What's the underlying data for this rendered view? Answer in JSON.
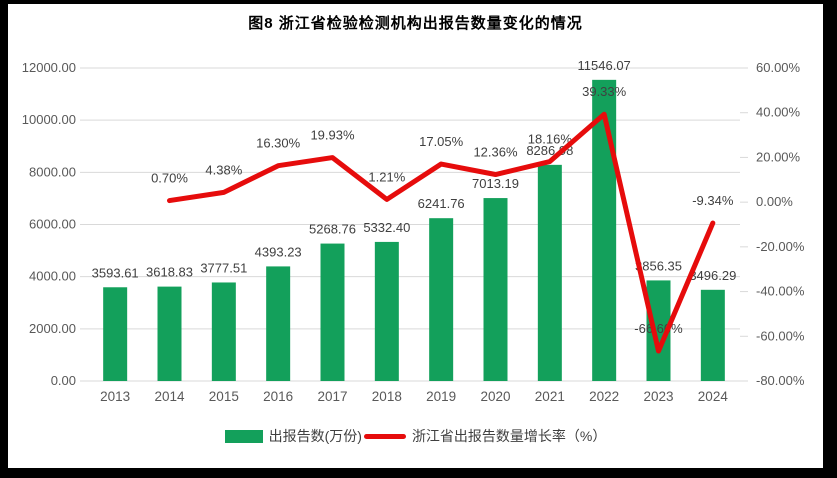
{
  "chart": {
    "title": "图8 浙江省检验检测机构出报告数量变化的情况",
    "colors": {
      "bar": "#13A05B",
      "line": "#E60C0C",
      "grid": "#D9D9D9",
      "axis_text": "#595959",
      "data_label": "#404040",
      "title_text": "#000000",
      "frame_border": "#000000",
      "background": "#FFFFFF"
    }
  },
  "chart_data": {
    "type": "bar+line combo",
    "title": "图8 浙江省检验检测机构出报告数量变化的情况",
    "categories": [
      "2013",
      "2014",
      "2015",
      "2016",
      "2017",
      "2018",
      "2019",
      "2020",
      "2021",
      "2022",
      "2023",
      "2024"
    ],
    "series": [
      {
        "name": "出报告数(万份)",
        "type": "bar",
        "axis": "left",
        "color": "#13A05B",
        "values": [
          3593.61,
          3618.83,
          3777.51,
          4393.23,
          5268.76,
          5332.4,
          6241.76,
          7013.19,
          8286.98,
          11546.07,
          3856.35,
          3496.29
        ],
        "labels": [
          "3593.61",
          "3618.83",
          "3777.51",
          "4393.23",
          "5268.76",
          "5332.40",
          "6241.76",
          "7013.19",
          "8286.98",
          "11546.07",
          "3856.35",
          "3496.29"
        ]
      },
      {
        "name": "浙江省出报告数量增长率（%）",
        "type": "line",
        "axis": "right",
        "color": "#E60C0C",
        "values": [
          null,
          0.7,
          4.38,
          16.3,
          19.93,
          1.21,
          17.05,
          12.36,
          18.16,
          39.33,
          -66.6,
          -9.34
        ],
        "labels": [
          null,
          "0.70%",
          "4.38%",
          "16.30%",
          "19.93%",
          "1.21%",
          "17.05%",
          "12.36%",
          "18.16%",
          "39.33%",
          "-66.60%",
          "-9.34%"
        ]
      }
    ],
    "left_axis": {
      "min": 0,
      "max": 12000,
      "step": 2000,
      "ticks": [
        "0.00",
        "2000.00",
        "4000.00",
        "6000.00",
        "8000.00",
        "10000.00",
        "12000.00"
      ]
    },
    "right_axis": {
      "min": -80,
      "max": 60,
      "step": 20,
      "ticks": [
        "-80.00%",
        "-60.00%",
        "-40.00%",
        "-20.00%",
        "0.00%",
        "20.00%",
        "40.00%",
        "60.00%"
      ]
    },
    "grid": true,
    "legend_position": "bottom"
  }
}
